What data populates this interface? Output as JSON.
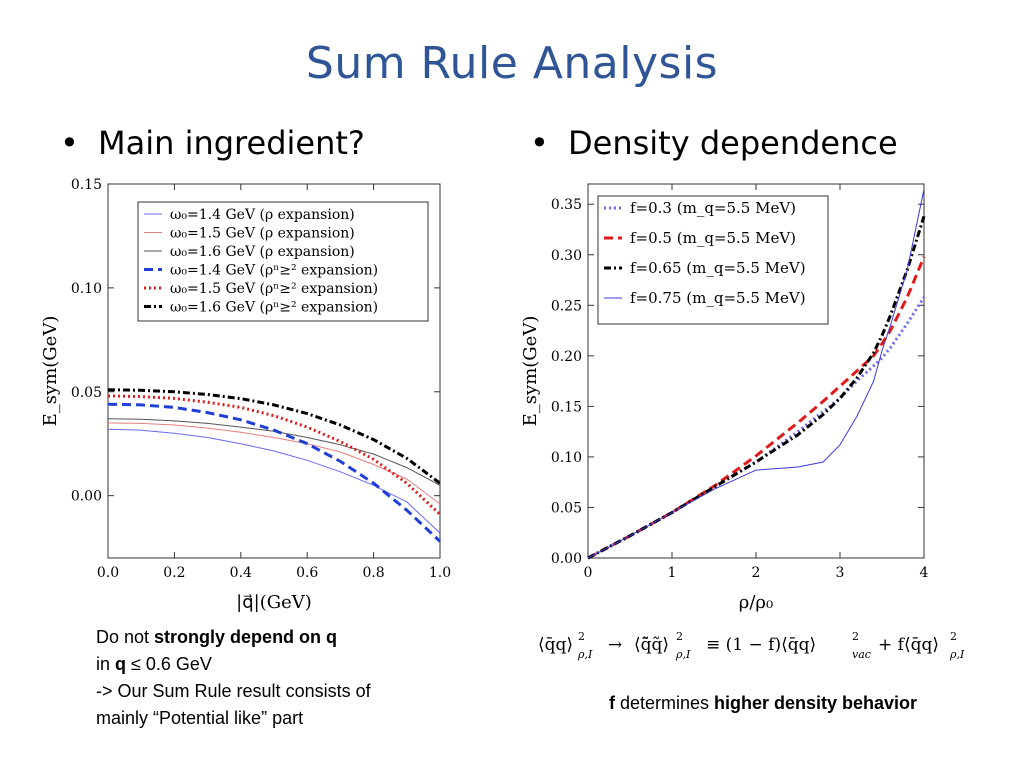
{
  "title": "Sum Rule Analysis",
  "bullets": {
    "left": "Main ingredient?",
    "right": "Density dependence",
    "glyph": "•"
  },
  "notes": {
    "left": {
      "l1_pre": "Do not ",
      "l1_bold": "strongly depend on q",
      "l2_pre": "in ",
      "l2_bold": "q",
      "l2_post": " ≤ 0.6 GeV",
      "l3": "-> Our Sum Rule result consists of",
      "l4": "mainly “Potential like” part"
    },
    "right": {
      "bold1": "f",
      "mid": " determines ",
      "bold2": "higher density behavior"
    }
  },
  "formula": {
    "lhs": "⟨q̄q⟩",
    "lhs_sub": "ρ,I",
    "arrow": "→",
    "mid": "⟨q̃̄q̃⟩",
    "equiv": "≡ (1 − f)⟨q̄q⟩",
    "vac_sub": "vac",
    "plus": "+ f⟨q̄q⟩",
    "sup": "2"
  },
  "chart_data": [
    {
      "type": "line",
      "xlabel": "|q⃗|(GeV)",
      "ylabel": "E_sym(GeV)",
      "xlim": [
        0.0,
        1.0
      ],
      "ylim": [
        -0.03,
        0.15
      ],
      "xticks": [
        "0.0",
        "0.2",
        "0.4",
        "0.6",
        "0.8",
        "1.0"
      ],
      "yticks": [
        "0.00",
        "0.05",
        "0.10",
        "0.15"
      ],
      "legend_position": "top-right",
      "x": [
        0.0,
        0.1,
        0.2,
        0.3,
        0.4,
        0.5,
        0.6,
        0.7,
        0.8,
        0.9,
        1.0
      ],
      "series": [
        {
          "name": "ω₀=1.4 GeV (ρ expansion)",
          "color": "#6a6af0",
          "style": "solid",
          "values": [
            0.032,
            0.0315,
            0.03,
            0.028,
            0.025,
            0.0215,
            0.017,
            0.0115,
            0.005,
            -0.003,
            -0.018
          ]
        },
        {
          "name": "ω₀=1.5 GeV (ρ expansion)",
          "color": "#e57f7f",
          "style": "solid",
          "values": [
            0.035,
            0.0348,
            0.034,
            0.0325,
            0.0305,
            0.028,
            0.025,
            0.021,
            0.015,
            0.008,
            -0.004
          ]
        },
        {
          "name": "ω₀=1.6 GeV (ρ expansion)",
          "color": "#555555",
          "style": "solid",
          "values": [
            0.037,
            0.0368,
            0.036,
            0.0348,
            0.033,
            0.031,
            0.028,
            0.0245,
            0.02,
            0.0135,
            0.005
          ]
        },
        {
          "name": "ω₀=1.4 GeV (ρⁿ≥² expansion)",
          "color": "#1f3fd6",
          "style": "dash",
          "values": [
            0.044,
            0.0437,
            0.0425,
            0.04,
            0.0365,
            0.0315,
            0.025,
            0.0165,
            0.006,
            -0.007,
            -0.022
          ]
        },
        {
          "name": "ω₀=1.5 GeV (ρⁿ≥² expansion)",
          "color": "#e01a1a",
          "style": "dot",
          "values": [
            0.048,
            0.0477,
            0.0468,
            0.045,
            0.0425,
            0.0385,
            0.033,
            0.026,
            0.0175,
            0.006,
            -0.009
          ]
        },
        {
          "name": "ω₀=1.6 GeV (ρⁿ≥² expansion)",
          "color": "#000000",
          "style": "dashdot",
          "values": [
            0.051,
            0.0507,
            0.05,
            0.0487,
            0.0467,
            0.0437,
            0.0395,
            0.034,
            0.027,
            0.018,
            0.006
          ]
        }
      ]
    },
    {
      "type": "line",
      "xlabel": "ρ/ρ₀",
      "ylabel": "E_sym(GeV)",
      "xlim": [
        0,
        4
      ],
      "ylim": [
        0.0,
        0.37
      ],
      "xticks": [
        "0",
        "1",
        "2",
        "3",
        "4"
      ],
      "yticks": [
        "0.00",
        "0.05",
        "0.10",
        "0.15",
        "0.20",
        "0.25",
        "0.30",
        "0.35"
      ],
      "legend_position": "top-left",
      "x": [
        0,
        0.5,
        1.0,
        1.5,
        2.0,
        2.5,
        2.8,
        3.0,
        3.2,
        3.4,
        3.5,
        3.6,
        3.8,
        4.0
      ],
      "series": [
        {
          "name": "f=0.3 (m_q=5.5 MeV)",
          "color": "#6a6af0",
          "style": "dot",
          "values": [
            0,
            0.022,
            0.045,
            0.07,
            0.095,
            0.125,
            0.145,
            0.158,
            0.175,
            0.19,
            0.198,
            0.208,
            0.232,
            0.258
          ]
        },
        {
          "name": "f=0.5 (m_q=5.5 MeV)",
          "color": "#e01a1a",
          "style": "dash",
          "values": [
            0,
            0.022,
            0.045,
            0.071,
            0.101,
            0.134,
            0.155,
            0.17,
            0.185,
            0.2,
            0.212,
            0.225,
            0.258,
            0.298
          ]
        },
        {
          "name": "f=0.65 (m_q=5.5 MeV)",
          "color": "#000000",
          "style": "dashdot",
          "values": [
            0,
            0.022,
            0.045,
            0.07,
            0.095,
            0.122,
            0.142,
            0.158,
            0.178,
            0.203,
            0.22,
            0.24,
            0.285,
            0.338
          ]
        },
        {
          "name": "f=0.75 (m_q=5.5 MeV)",
          "color": "#3a3ad8",
          "style": "solid",
          "values": [
            0,
            0.022,
            0.045,
            0.068,
            0.087,
            0.09,
            0.095,
            0.112,
            0.14,
            0.175,
            0.205,
            0.23,
            0.285,
            0.365
          ]
        }
      ]
    }
  ]
}
